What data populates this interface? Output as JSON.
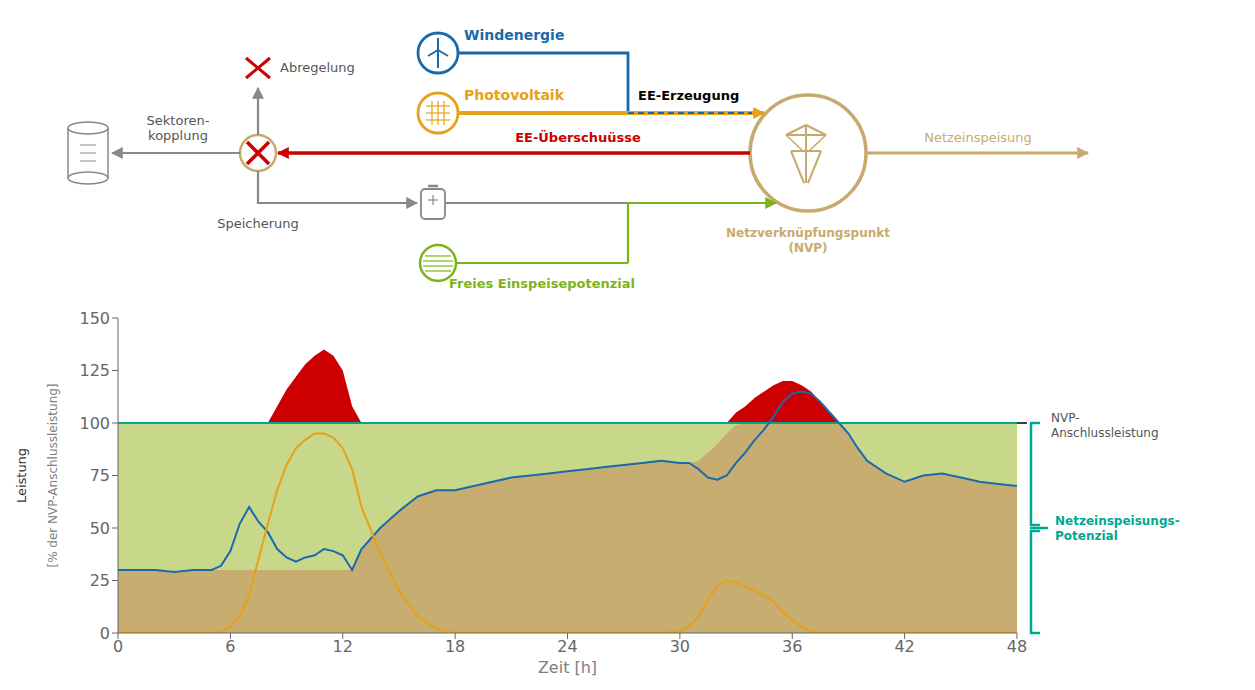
{
  "chart_data": {
    "type": "area",
    "xlabel": "Zeit [h]",
    "ylabel": "[% der NVP-Anschlussleistung]",
    "annotations": [
      "Windenergie",
      "Photovoltaik",
      "EE-Erzeugung",
      "EE-Überschuüsse",
      "Netzeinspeisung",
      "Netzverknüpfungspunkt\n(NVP)",
      "Abregelung",
      "Sektoren-\nkopplung",
      "Speicherung",
      "Freies Einspeisepotenzial",
      "NVP-\nAnschlussleistung",
      "Netzeinspeisungs-\nPotenzial",
      "Leistung"
    ],
    "x": [
      0,
      1,
      2,
      3,
      4,
      5,
      5.5,
      6,
      6.5,
      7,
      7.5,
      8,
      8.5,
      9,
      9.5,
      10,
      10.5,
      11,
      11.5,
      12,
      12.5,
      13,
      14,
      15,
      16,
      17,
      18,
      19,
      20,
      21,
      22,
      23,
      24,
      25,
      26,
      27,
      28,
      29,
      30,
      30.5,
      31,
      31.5,
      32,
      32.5,
      33,
      33.5,
      34,
      34.5,
      35,
      35.5,
      36,
      36.5,
      37,
      37.5,
      38,
      38.5,
      39,
      39.5,
      40,
      41,
      42,
      43,
      44,
      45,
      46,
      47,
      48
    ],
    "series": [
      {
        "type": "area",
        "color": "#c8d88a",
        "values": [
          100,
          100,
          100,
          100,
          100,
          100,
          100,
          100,
          100,
          100,
          100,
          100,
          100,
          100,
          100,
          100,
          100,
          100,
          100,
          100,
          100,
          100,
          100,
          100,
          100,
          100,
          100,
          100,
          100,
          100,
          100,
          100,
          100,
          100,
          100,
          100,
          100,
          100,
          100,
          100,
          100,
          100,
          100,
          100,
          100,
          100,
          100,
          100,
          100,
          100,
          100,
          100,
          100,
          100,
          100,
          100,
          100,
          100,
          100,
          100,
          100,
          100,
          100,
          100,
          100,
          100,
          100
        ]
      },
      {
        "type": "area",
        "color": "#c8a96e",
        "values": [
          30,
          30,
          30,
          29,
          30,
          30,
          30,
          30,
          30,
          30,
          30,
          30,
          30,
          30,
          30,
          30,
          30,
          30,
          30,
          30,
          30,
          40,
          50,
          58,
          65,
          68,
          68,
          70,
          72,
          74,
          75,
          76,
          77,
          78,
          79,
          80,
          81,
          82,
          81,
          81,
          82,
          86,
          90,
          95,
          99,
          100,
          100,
          100,
          100,
          100,
          100,
          100,
          100,
          100,
          100,
          100,
          95,
          88,
          82,
          76,
          72,
          75,
          76,
          74,
          72,
          71,
          70
        ]
      },
      {
        "type": "area",
        "color": "#cc0000",
        "values": [
          30,
          30,
          30,
          29,
          30,
          30,
          33,
          42,
          60,
          78,
          88,
          100,
          108,
          116,
          122,
          128,
          132,
          135,
          132,
          125,
          108,
          100,
          88,
          78,
          73,
          70,
          68,
          70,
          72,
          74,
          75,
          76,
          77,
          78,
          79,
          80,
          81,
          82,
          82,
          84,
          86,
          90,
          95,
          100,
          105,
          108,
          112,
          115,
          118,
          120,
          120,
          118,
          115,
          110,
          105,
          100,
          95,
          88,
          82,
          76,
          72,
          75,
          76,
          74,
          72,
          71,
          70
        ]
      },
      {
        "type": "line",
        "color": "#00a88f",
        "values": [
          100,
          100,
          100,
          100,
          100,
          100,
          100,
          100,
          100,
          100,
          100,
          100,
          100,
          100,
          100,
          100,
          100,
          100,
          100,
          100,
          100,
          100,
          100,
          100,
          100,
          100,
          100,
          100,
          100,
          100,
          100,
          100,
          100,
          100,
          100,
          100,
          100,
          100,
          100,
          100,
          100,
          100,
          100,
          100,
          100,
          100,
          100,
          100,
          100,
          100,
          100,
          100,
          100,
          100,
          100,
          100,
          100,
          100,
          100,
          100,
          100,
          100,
          100,
          100,
          100,
          100,
          100
        ]
      },
      {
        "type": "line",
        "color": "#1a6aab",
        "values": [
          30,
          30,
          30,
          29,
          30,
          30,
          32,
          39,
          52,
          60,
          53,
          48,
          40,
          36,
          34,
          36,
          37,
          40,
          39,
          37,
          30,
          40,
          50,
          58,
          65,
          68,
          68,
          70,
          72,
          74,
          75,
          76,
          77,
          78,
          79,
          80,
          81,
          82,
          81,
          81,
          78,
          74,
          73,
          75,
          81,
          86,
          92,
          97,
          103,
          110,
          114,
          115,
          114,
          110,
          105,
          100,
          95,
          88,
          82,
          76,
          72,
          75,
          76,
          74,
          72,
          71,
          70
        ]
      },
      {
        "type": "line",
        "color": "#e6a118",
        "values": [
          0,
          0,
          0,
          0,
          0,
          0,
          1,
          3,
          8,
          18,
          35,
          52,
          68,
          80,
          88,
          92,
          95,
          95,
          93,
          88,
          78,
          60,
          38,
          20,
          8,
          2,
          0,
          0,
          0,
          0,
          0,
          0,
          0,
          0,
          0,
          0,
          0,
          0,
          1,
          3,
          8,
          16,
          22,
          25,
          24,
          22,
          20,
          18,
          15,
          10,
          6,
          3,
          1,
          0,
          0,
          0,
          0,
          0,
          0,
          0,
          0,
          0,
          0,
          0,
          0,
          0,
          0
        ]
      }
    ],
    "xlim": [
      0,
      48
    ],
    "ylim": [
      0,
      150
    ],
    "xticks": [
      0,
      6,
      12,
      18,
      24,
      30,
      36,
      42,
      48
    ],
    "yticks": [
      0,
      25,
      50,
      75,
      100,
      125,
      150
    ]
  }
}
